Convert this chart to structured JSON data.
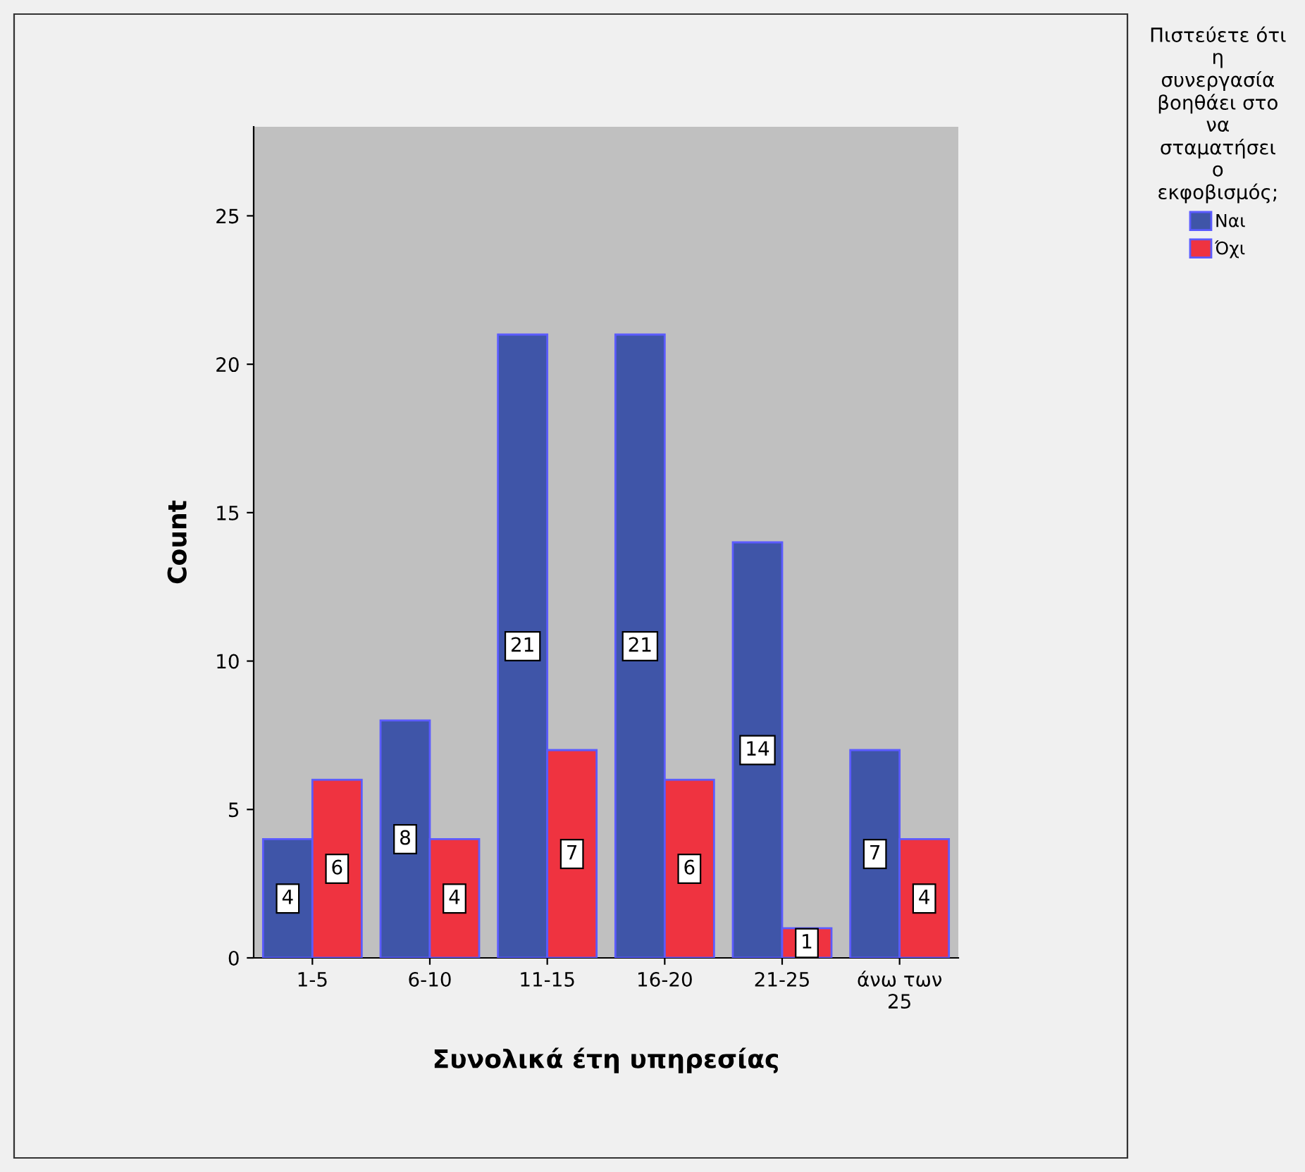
{
  "chart_data": {
    "type": "bar",
    "xlabel": "Συνολικά έτη υπηρεσίας",
    "ylabel": "Count",
    "legend_title": "Πιστεύετε ότι\nη\nσυνεργασία\nβοηθάει στο\nνα\nσταματήσει\nο\nεκφοβισμός;",
    "categories": [
      "1-5",
      "6-10",
      "11-15",
      "16-20",
      "21-25",
      "άνω των\n25"
    ],
    "series": [
      {
        "name": "Ναι",
        "color": "#3f55a8",
        "values": [
          4,
          8,
          21,
          21,
          14,
          7
        ]
      },
      {
        "name": "Όχι",
        "color": "#ef3340",
        "values": [
          6,
          4,
          7,
          6,
          1,
          4
        ]
      }
    ],
    "ylim": [
      0,
      28
    ],
    "yticks": [
      0,
      5,
      10,
      15,
      20,
      25
    ],
    "grid": false,
    "legend": "top right",
    "data_labels": true
  }
}
